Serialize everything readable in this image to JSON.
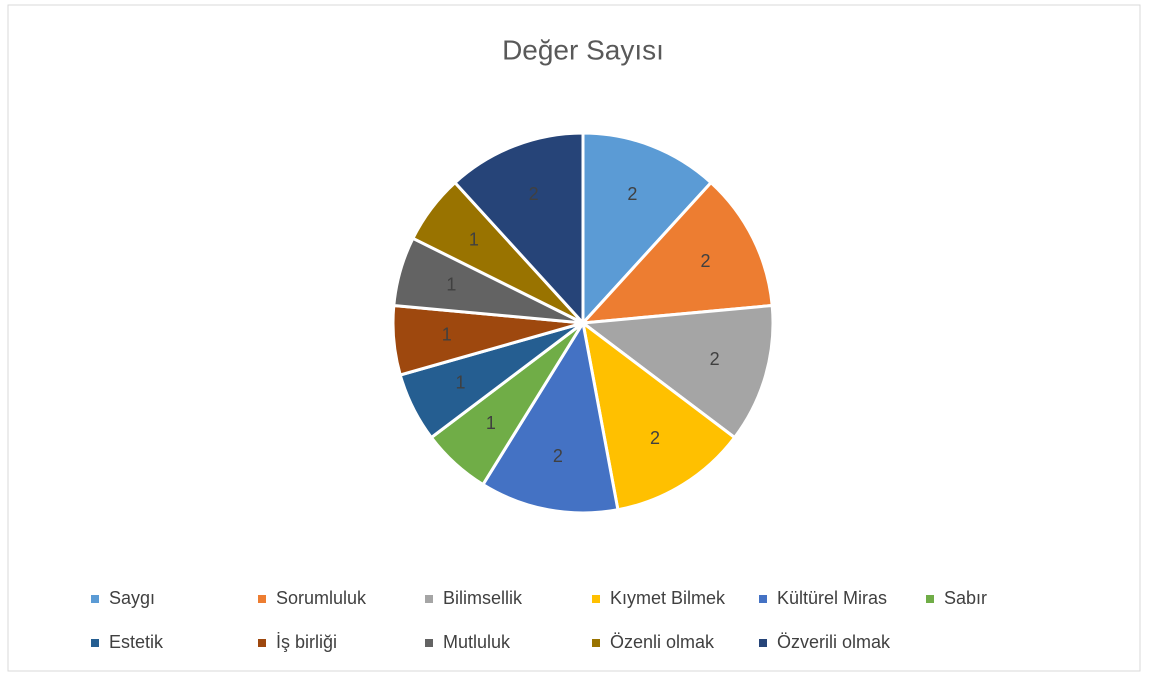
{
  "chart_data": {
    "type": "pie",
    "title": "Değer Sayısı",
    "categories": [
      "Saygı",
      "Sorumluluk",
      "Bilimsellik",
      "Kıymet Bilmek",
      "Kültürel Miras",
      "Sabır",
      "Estetik",
      "İş birliği",
      "Mutluluk",
      "Özenli olmak",
      "Özverili olmak"
    ],
    "values": [
      2,
      2,
      2,
      2,
      2,
      1,
      1,
      1,
      1,
      1,
      2
    ],
    "colors": [
      "#5b9bd5",
      "#ed7d31",
      "#a5a5a5",
      "#ffc000",
      "#4472c4",
      "#70ad47",
      "#255e91",
      "#9e480e",
      "#636363",
      "#997300",
      "#264478"
    ],
    "legend": "bottom"
  }
}
